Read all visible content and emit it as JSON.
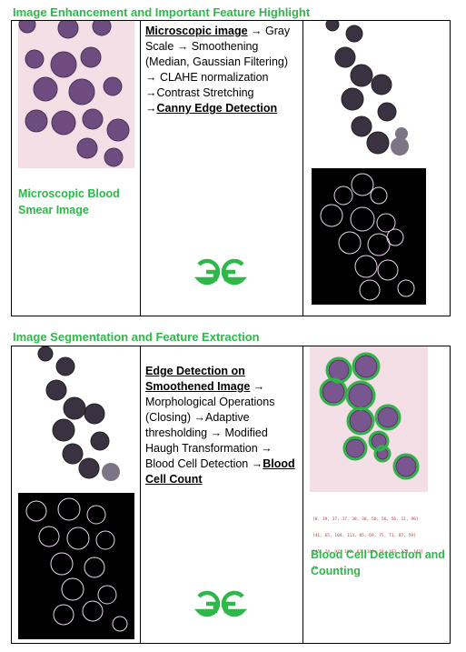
{
  "section1": {
    "heading": "Image Enhancement and Important Feature Highlight",
    "caption_line1": "Microscopic Blood",
    "caption_line2": "Smear Image",
    "pipeline": {
      "part1": "Microscopic image",
      "part2": " → Gray Scale → Smoothening (Median, Gaussian Filtering) → CLAHE normalization →Contrast Stretching →",
      "part3": "Canny Edge Detection"
    },
    "logo": "GG"
  },
  "section2": {
    "heading": "Image Segmentation and Feature Extraction",
    "pipeline": {
      "part1": "Edge Detection on Smoothened Image",
      "part2": " → Morphological Operations (Closing) →Adaptive thresholding → Modified Haugh Transformation → Blood Cell Detection →",
      "part3": "Blood Cell Count"
    },
    "caption_line1": "Blood Cell Detection and",
    "caption_line2": "Counting",
    "coords": [
      "[0, 19, 37, 37, 38, 38, 56, 56, 56, 11, 90]",
      "[41, 65, 104, 113, 85, 69, 75, 71, 87, 59]",
      "[45, 74, 97, 100, 82, 108, 10, 163, 124, 143]",
      "10"
    ],
    "logo": "GG"
  },
  "colors": {
    "accent_green": "#2eb84a",
    "cell_purple": "#6b4a7a",
    "smear_pink": "#f3dfe5"
  }
}
